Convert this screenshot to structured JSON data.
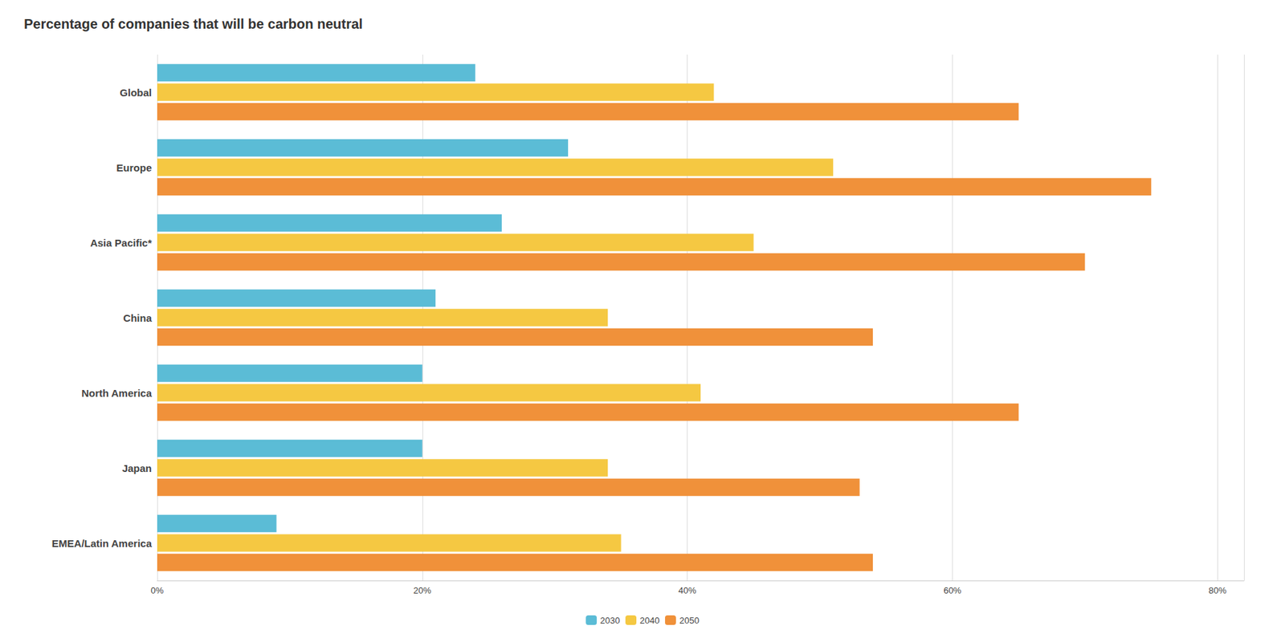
{
  "chart_data": {
    "type": "bar",
    "orientation": "horizontal",
    "title": "Percentage of companies that will be carbon neutral",
    "categories": [
      "Global",
      "Europe",
      "Asia Pacific*",
      "China",
      "North America",
      "Japan",
      "EMEA/Latin America"
    ],
    "series": [
      {
        "name": "2030",
        "color": "#5bbcd6",
        "values": [
          0.24,
          0.31,
          0.26,
          0.21,
          0.2,
          0.2,
          0.09
        ]
      },
      {
        "name": "2040",
        "color": "#f5c842",
        "values": [
          0.42,
          0.51,
          0.45,
          0.34,
          0.41,
          0.34,
          0.35
        ]
      },
      {
        "name": "2050",
        "color": "#f0913a",
        "values": [
          0.65,
          0.75,
          0.7,
          0.54,
          0.65,
          0.53,
          0.54
        ]
      }
    ],
    "xlim": [
      0,
      0.82
    ],
    "xticks": [
      {
        "value": 0,
        "label": "0%"
      },
      {
        "value": 0.2,
        "label": "20%"
      },
      {
        "value": 0.4,
        "label": "40%"
      },
      {
        "value": 0.6,
        "label": "60%"
      },
      {
        "value": 0.8,
        "label": "80%"
      }
    ],
    "grid": true,
    "legend": "bottom"
  }
}
